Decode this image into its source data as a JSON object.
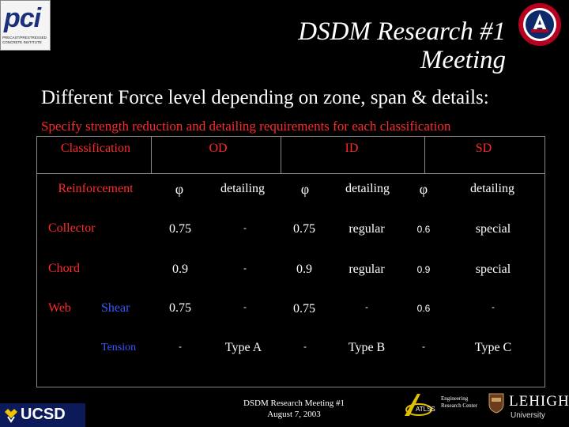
{
  "logos": {
    "pci_text": "pci",
    "pci_subtitle": "PRECAST/PRESTRESSED CONCRETE INSTITUTE",
    "ucsd_text": "UCSD",
    "err_text": "Engineering Research Center",
    "lehigh_text": "LEHIGH",
    "lehigh_sub": "University"
  },
  "slide": {
    "title_line1": "DSDM Research #1",
    "title_line2": "Meeting",
    "subtitle": "Different Force level depending on zone, span & details:",
    "instruction": "Specify strength reduction and detailing requirements for each classification"
  },
  "table": {
    "header_classification": "Classification",
    "header_od": "OD",
    "header_id": "ID",
    "header_sd": "SD",
    "reinforcement_label": "Reinforcement",
    "phi_symbol": "φ",
    "detailing_label": "detailing",
    "rows": [
      {
        "label": "Collector",
        "od_phi": "0.75",
        "od_det": "-",
        "id_phi": "0.75",
        "id_det": "regular",
        "sd_phi": "0.6",
        "sd_det": "special"
      },
      {
        "label": "Chord",
        "od_phi": "0.9",
        "od_det": "-",
        "id_phi": "0.9",
        "id_det": "regular",
        "sd_phi": "0.9",
        "sd_det": "special"
      },
      {
        "label": "Web",
        "sublabel": "Shear",
        "od_phi": "0.75",
        "od_det": "-",
        "id_phi": "0.75",
        "id_det": "-",
        "sd_phi": "0.6",
        "sd_det": "-"
      },
      {
        "sublabel": "Tension",
        "od_phi": "-",
        "od_det": "Type A",
        "id_phi": "-",
        "id_det": "Type B",
        "sd_phi": "-",
        "sd_det": "Type C"
      }
    ]
  },
  "footer": {
    "line1": "DSDM Research Meeting #1",
    "line2": "August 7, 2003"
  }
}
